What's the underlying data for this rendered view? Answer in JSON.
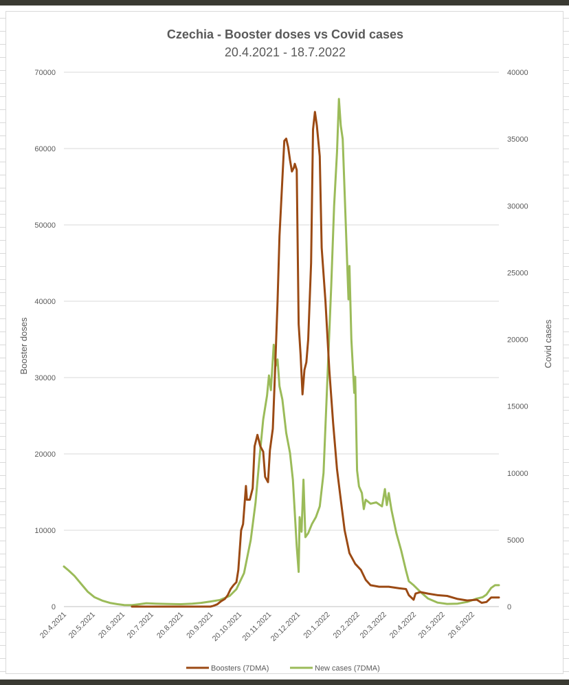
{
  "chart_data": {
    "type": "line",
    "title": "Czechia  - Booster doses vs Covid cases",
    "subtitle": "20.4.2021 - 18.7.2022",
    "ylabel_left": "Booster doses",
    "ylabel_right": "Covid cases",
    "ylim_left": [
      0,
      70000
    ],
    "ylim_right": [
      0,
      40000
    ],
    "yticks_left": [
      "0",
      "10000",
      "20000",
      "30000",
      "40000",
      "50000",
      "60000",
      "70000"
    ],
    "yticks_right": [
      "0",
      "5000",
      "10000",
      "15000",
      "20000",
      "25000",
      "30000",
      "35000",
      "40000"
    ],
    "x_date_range": [
      "2021-04-20",
      "2022-07-18"
    ],
    "xticks": [
      {
        "date": "2021-04-20",
        "label": "20.4.2021"
      },
      {
        "date": "2021-05-20",
        "label": "20.5.2021"
      },
      {
        "date": "2021-06-20",
        "label": "20.6.2021"
      },
      {
        "date": "2021-07-20",
        "label": "20.7.2021"
      },
      {
        "date": "2021-08-20",
        "label": "20.8.2021"
      },
      {
        "date": "2021-09-20",
        "label": "20.9.2021"
      },
      {
        "date": "2021-10-20",
        "label": "20.10.2021"
      },
      {
        "date": "2021-11-20",
        "label": "20.11.2021"
      },
      {
        "date": "2021-12-20",
        "label": "20.12.2021"
      },
      {
        "date": "2022-01-20",
        "label": "20.1.2022"
      },
      {
        "date": "2022-02-20",
        "label": "20.2.2022"
      },
      {
        "date": "2022-03-20",
        "label": "20.3.2022"
      },
      {
        "date": "2022-04-20",
        "label": "20.4.2022"
      },
      {
        "date": "2022-05-20",
        "label": "20.5.2022"
      },
      {
        "date": "2022-06-20",
        "label": "20.6.2022"
      }
    ],
    "grid": true,
    "legend_position": "bottom",
    "series": [
      {
        "name": "Boosters (7DMA)",
        "color": "#9b4a14",
        "axis": "left",
        "points": [
          [
            "2021-06-30",
            0
          ],
          [
            "2021-07-20",
            0
          ],
          [
            "2021-08-20",
            0
          ],
          [
            "2021-09-20",
            0
          ],
          [
            "2021-09-23",
            100
          ],
          [
            "2021-09-27",
            300
          ],
          [
            "2021-10-01",
            700
          ],
          [
            "2021-10-05",
            1000
          ],
          [
            "2021-10-08",
            1500
          ],
          [
            "2021-10-11",
            2300
          ],
          [
            "2021-10-14",
            2800
          ],
          [
            "2021-10-17",
            3200
          ],
          [
            "2021-10-19",
            4800
          ],
          [
            "2021-10-22",
            10000
          ],
          [
            "2021-10-24",
            10800
          ],
          [
            "2021-10-27",
            15800
          ],
          [
            "2021-10-28",
            14000
          ],
          [
            "2021-10-31",
            14000
          ],
          [
            "2021-11-03",
            15500
          ],
          [
            "2021-11-05",
            21000
          ],
          [
            "2021-11-08",
            22500
          ],
          [
            "2021-11-11",
            21000
          ],
          [
            "2021-11-14",
            20300
          ],
          [
            "2021-11-16",
            17000
          ],
          [
            "2021-11-19",
            16300
          ],
          [
            "2021-11-21",
            20500
          ],
          [
            "2021-11-24",
            23300
          ],
          [
            "2021-11-26",
            29500
          ],
          [
            "2021-11-29",
            40000
          ],
          [
            "2021-12-01",
            48500
          ],
          [
            "2021-12-04",
            56000
          ],
          [
            "2021-12-06",
            61000
          ],
          [
            "2021-12-08",
            61300
          ],
          [
            "2021-12-10",
            60200
          ],
          [
            "2021-12-12",
            58500
          ],
          [
            "2021-12-14",
            57000
          ],
          [
            "2021-12-16",
            57500
          ],
          [
            "2021-12-17",
            58000
          ],
          [
            "2021-12-19",
            57200
          ],
          [
            "2021-12-21",
            37000
          ],
          [
            "2021-12-23",
            33000
          ],
          [
            "2021-12-25",
            27800
          ],
          [
            "2021-12-27",
            31000
          ],
          [
            "2021-12-29",
            32000
          ],
          [
            "2021-12-31",
            35000
          ],
          [
            "2022-01-03",
            45000
          ],
          [
            "2022-01-05",
            62500
          ],
          [
            "2022-01-07",
            64800
          ],
          [
            "2022-01-09",
            63000
          ],
          [
            "2022-01-12",
            59000
          ],
          [
            "2022-01-14",
            47000
          ],
          [
            "2022-01-18",
            40000
          ],
          [
            "2022-01-22",
            31000
          ],
          [
            "2022-01-26",
            24000
          ],
          [
            "2022-01-30",
            18000
          ],
          [
            "2022-02-03",
            14000
          ],
          [
            "2022-02-07",
            10000
          ],
          [
            "2022-02-12",
            7000
          ],
          [
            "2022-02-18",
            5600
          ],
          [
            "2022-02-24",
            4800
          ],
          [
            "2022-03-01",
            3500
          ],
          [
            "2022-03-06",
            2800
          ],
          [
            "2022-03-15",
            2600
          ],
          [
            "2022-03-25",
            2600
          ],
          [
            "2022-04-05",
            2400
          ],
          [
            "2022-04-12",
            2300
          ],
          [
            "2022-04-15",
            1500
          ],
          [
            "2022-04-20",
            900
          ],
          [
            "2022-04-22",
            1700
          ],
          [
            "2022-04-27",
            1900
          ],
          [
            "2022-05-05",
            1700
          ],
          [
            "2022-05-15",
            1500
          ],
          [
            "2022-05-25",
            1400
          ],
          [
            "2022-06-05",
            1000
          ],
          [
            "2022-06-15",
            800
          ],
          [
            "2022-06-25",
            900
          ],
          [
            "2022-06-30",
            500
          ],
          [
            "2022-07-05",
            600
          ],
          [
            "2022-07-10",
            1200
          ],
          [
            "2022-07-18",
            1200
          ]
        ]
      },
      {
        "name": "New cases (7DMA)",
        "color": "#9bbb59",
        "axis": "right",
        "points": [
          [
            "2021-04-20",
            3000
          ],
          [
            "2021-04-25",
            2700
          ],
          [
            "2021-05-01",
            2300
          ],
          [
            "2021-05-08",
            1700
          ],
          [
            "2021-05-15",
            1100
          ],
          [
            "2021-05-22",
            700
          ],
          [
            "2021-05-30",
            450
          ],
          [
            "2021-06-07",
            280
          ],
          [
            "2021-06-15",
            180
          ],
          [
            "2021-06-22",
            120
          ],
          [
            "2021-06-30",
            110
          ],
          [
            "2021-07-08",
            180
          ],
          [
            "2021-07-15",
            250
          ],
          [
            "2021-07-25",
            220
          ],
          [
            "2021-08-05",
            200
          ],
          [
            "2021-08-20",
            180
          ],
          [
            "2021-09-01",
            220
          ],
          [
            "2021-09-10",
            280
          ],
          [
            "2021-09-20",
            380
          ],
          [
            "2021-09-30",
            500
          ],
          [
            "2021-10-10",
            800
          ],
          [
            "2021-10-17",
            1300
          ],
          [
            "2021-10-25",
            2500
          ],
          [
            "2021-11-01",
            5000
          ],
          [
            "2021-11-06",
            7800
          ],
          [
            "2021-11-10",
            11000
          ],
          [
            "2021-11-14",
            14000
          ],
          [
            "2021-11-18",
            15800
          ],
          [
            "2021-11-20",
            17300
          ],
          [
            "2021-11-22",
            16200
          ],
          [
            "2021-11-24",
            18500
          ],
          [
            "2021-11-25",
            19600
          ],
          [
            "2021-11-27",
            18000
          ],
          [
            "2021-11-29",
            18500
          ],
          [
            "2021-12-01",
            16500
          ],
          [
            "2021-12-04",
            15500
          ],
          [
            "2021-12-08",
            13000
          ],
          [
            "2021-12-12",
            11500
          ],
          [
            "2021-12-15",
            9500
          ],
          [
            "2021-12-17",
            7000
          ],
          [
            "2021-12-19",
            4500
          ],
          [
            "2021-12-21",
            2600
          ],
          [
            "2021-12-22",
            6700
          ],
          [
            "2021-12-24",
            5600
          ],
          [
            "2021-12-26",
            9500
          ],
          [
            "2021-12-28",
            5200
          ],
          [
            "2021-12-31",
            5500
          ],
          [
            "2022-01-04",
            6200
          ],
          [
            "2022-01-08",
            6700
          ],
          [
            "2022-01-12",
            7500
          ],
          [
            "2022-01-16",
            10000
          ],
          [
            "2022-01-20",
            17000
          ],
          [
            "2022-01-24",
            24000
          ],
          [
            "2022-01-27",
            30000
          ],
          [
            "2022-01-30",
            34000
          ],
          [
            "2022-02-01",
            38000
          ],
          [
            "2022-02-03",
            36000
          ],
          [
            "2022-02-05",
            35000
          ],
          [
            "2022-02-07",
            31000
          ],
          [
            "2022-02-09",
            27000
          ],
          [
            "2022-02-11",
            23000
          ],
          [
            "2022-02-12",
            25500
          ],
          [
            "2022-02-14",
            20000
          ],
          [
            "2022-02-17",
            16000
          ],
          [
            "2022-02-18",
            17200
          ],
          [
            "2022-02-20",
            10200
          ],
          [
            "2022-02-22",
            9000
          ],
          [
            "2022-02-25",
            8500
          ],
          [
            "2022-02-27",
            7300
          ],
          [
            "2022-03-01",
            8000
          ],
          [
            "2022-03-06",
            7700
          ],
          [
            "2022-03-12",
            7800
          ],
          [
            "2022-03-18",
            7500
          ],
          [
            "2022-03-21",
            8800
          ],
          [
            "2022-03-23",
            7600
          ],
          [
            "2022-03-25",
            8500
          ],
          [
            "2022-03-28",
            7200
          ],
          [
            "2022-04-02",
            5500
          ],
          [
            "2022-04-07",
            4200
          ],
          [
            "2022-04-12",
            2700
          ],
          [
            "2022-04-15",
            1900
          ],
          [
            "2022-04-20",
            1600
          ],
          [
            "2022-04-27",
            1100
          ],
          [
            "2022-05-05",
            600
          ],
          [
            "2022-05-15",
            300
          ],
          [
            "2022-05-25",
            200
          ],
          [
            "2022-06-05",
            220
          ],
          [
            "2022-06-15",
            350
          ],
          [
            "2022-06-25",
            600
          ],
          [
            "2022-07-01",
            700
          ],
          [
            "2022-07-05",
            900
          ],
          [
            "2022-07-10",
            1400
          ],
          [
            "2022-07-14",
            1600
          ],
          [
            "2022-07-18",
            1600
          ]
        ]
      }
    ]
  }
}
